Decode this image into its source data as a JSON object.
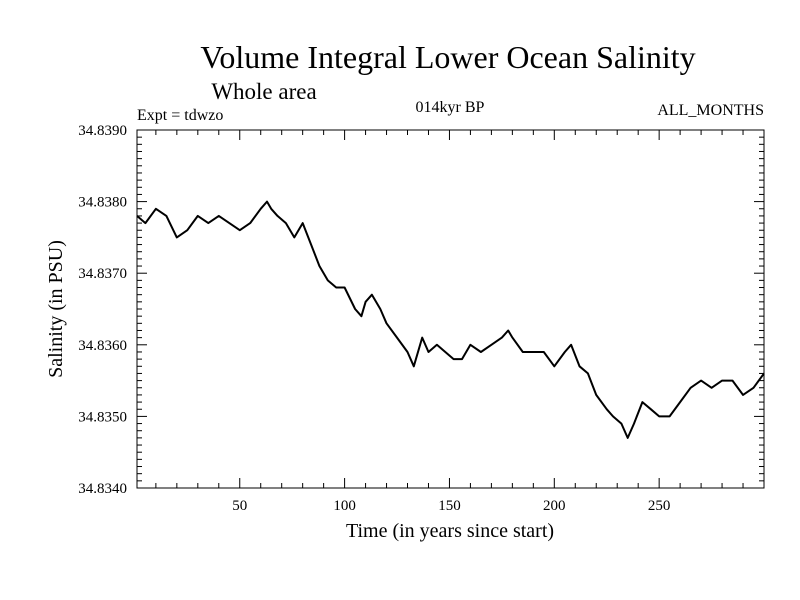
{
  "chart_data": {
    "type": "line",
    "title": "Volume Integral Lower Ocean Salinity",
    "subtitle": "Whole area",
    "annotations": {
      "left": "Expt = tdwzo",
      "center": "014kyr BP",
      "right": "ALL_MONTHS"
    },
    "xlabel": "Time (in years since start)",
    "ylabel": "Salinity (in PSU)",
    "xlim": [
      1,
      300
    ],
    "ylim": [
      34.834,
      34.839
    ],
    "xticks": [
      50,
      100,
      150,
      200,
      250
    ],
    "yticks": [
      34.834,
      34.835,
      34.836,
      34.837,
      34.838,
      34.839
    ],
    "ytick_labels": [
      "34.8340",
      "34.8350",
      "34.8360",
      "34.8370",
      "34.8380",
      "34.8390"
    ],
    "series": [
      {
        "name": "salinity",
        "x": [
          1,
          5,
          10,
          15,
          20,
          25,
          30,
          35,
          40,
          45,
          50,
          55,
          60,
          63,
          65,
          68,
          72,
          76,
          80,
          84,
          88,
          92,
          96,
          100,
          105,
          108,
          110,
          113,
          117,
          120,
          125,
          130,
          133,
          137,
          140,
          144,
          148,
          152,
          156,
          160,
          165,
          170,
          175,
          178,
          180,
          185,
          190,
          195,
          200,
          205,
          208,
          212,
          216,
          220,
          225,
          228,
          232,
          235,
          238,
          242,
          246,
          250,
          255,
          260,
          265,
          270,
          275,
          280,
          285,
          290,
          295,
          300
        ],
        "values": [
          34.8378,
          34.8377,
          34.8379,
          34.8378,
          34.8375,
          34.8376,
          34.8378,
          34.8377,
          34.8378,
          34.8377,
          34.8376,
          34.8377,
          34.8379,
          34.838,
          34.8379,
          34.8378,
          34.8377,
          34.8375,
          34.8377,
          34.8374,
          34.8371,
          34.8369,
          34.8368,
          34.8368,
          34.8365,
          34.8364,
          34.8366,
          34.8367,
          34.8365,
          34.8363,
          34.8361,
          34.8359,
          34.8357,
          34.8361,
          34.8359,
          34.836,
          34.8359,
          34.8358,
          34.8358,
          34.836,
          34.8359,
          34.836,
          34.8361,
          34.8362,
          34.8361,
          34.8359,
          34.8359,
          34.8359,
          34.8357,
          34.8359,
          34.836,
          34.8357,
          34.8356,
          34.8353,
          34.8351,
          34.835,
          34.8349,
          34.8347,
          34.8349,
          34.8352,
          34.8351,
          34.835,
          34.835,
          34.8352,
          34.8354,
          34.8355,
          34.8354,
          34.8355,
          34.8355,
          34.8353,
          34.8354,
          34.8356
        ]
      }
    ]
  }
}
